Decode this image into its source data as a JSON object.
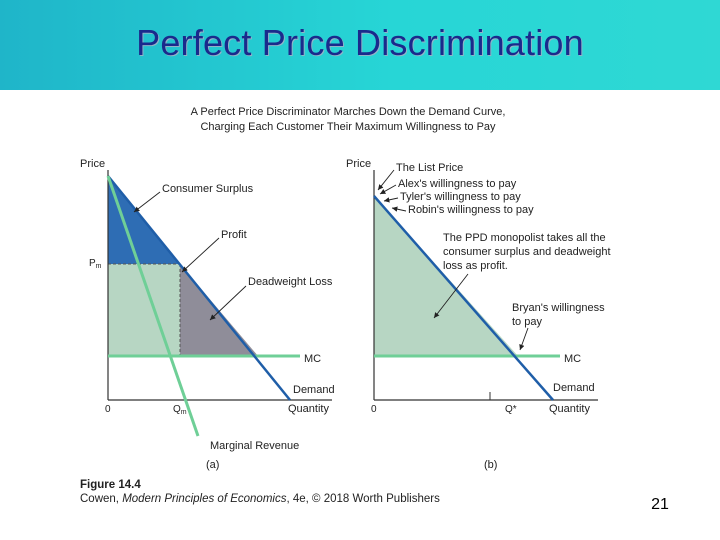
{
  "slide": {
    "title": "Perfect Price Discrimination",
    "page_number": "21"
  },
  "figure": {
    "heading_line1": "A Perfect Price Discriminator Marches Down the Demand Curve,",
    "heading_line2": "Charging Each Customer Their Maximum Willingness to Pay",
    "caption_number": "Figure 14.4",
    "caption_author": "Cowen, ",
    "caption_book": "Modern Principles of Economics",
    "caption_rest": ", 4e, © 2018 Worth Publishers",
    "panel_a": {
      "label": "(a)",
      "y_axis": "Price",
      "x_axis": "Quantity",
      "origin": "0",
      "pm": "P",
      "pm_sub": "m",
      "qm": "Q",
      "qm_sub": "m",
      "consumer_surplus": "Consumer Surplus",
      "profit": "Profit",
      "deadweight_loss": "Deadweight Loss",
      "mc": "MC",
      "demand": "Demand",
      "marginal_revenue": "Marginal Revenue"
    },
    "panel_b": {
      "label": "(b)",
      "y_axis": "Price",
      "x_axis": "Quantity",
      "origin": "0",
      "q_star": "Q*",
      "list_price": "The List Price",
      "alex": "Alex's willingness to pay",
      "tyler": "Tyler's willingness to pay",
      "robin": "Robin's willingness to pay",
      "ppd_line1": "The PPD monopolist takes all the",
      "ppd_line2": "consumer surplus and deadweight",
      "ppd_line3": "loss as profit.",
      "bryan_line1": "Bryan's willingness",
      "bryan_line2": "to pay",
      "mc": "MC",
      "demand": "Demand"
    },
    "colors": {
      "consumer_surplus": "#2e6db4",
      "profit": "#b7d6c3",
      "deadweight_loss": "#8f8d99",
      "demand": "#1f5ea8",
      "mc": "#6fcf97",
      "marginal_revenue": "#6fcf97"
    }
  }
}
